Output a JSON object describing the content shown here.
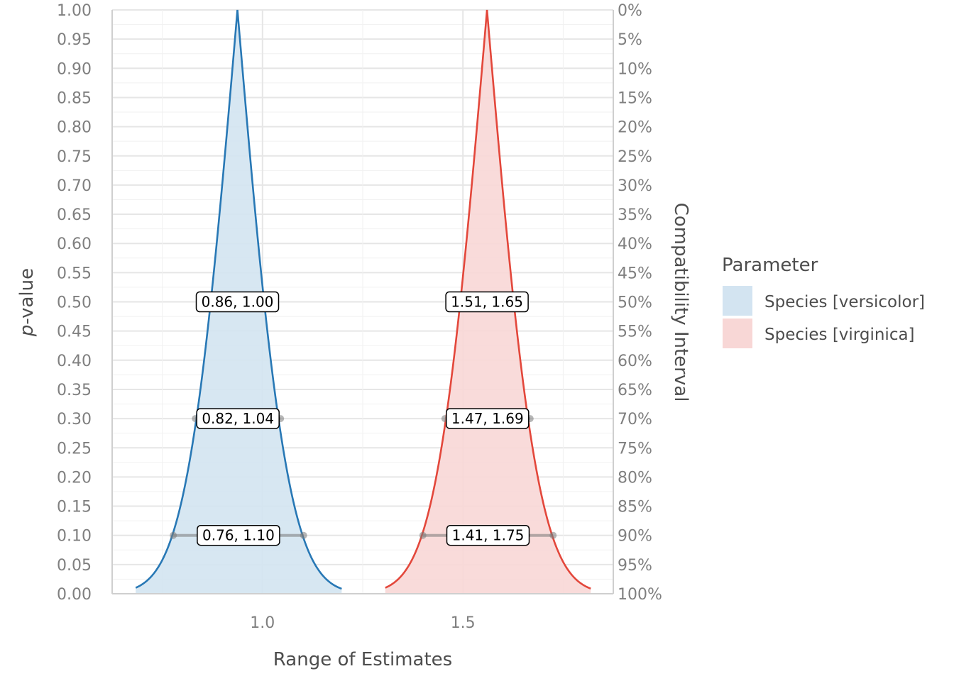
{
  "chart_data": {
    "type": "area",
    "title": "",
    "xlabel": "Range of Estimates",
    "ylabel_prefix": "p",
    "ylabel_suffix": "-value",
    "y2label": "Compatibility Interval",
    "xlim": [
      0.0,
      1.0
    ],
    "ylim": [
      0,
      1
    ],
    "x_ticks": [
      {
        "value": 0.3,
        "label": "1.0"
      },
      {
        "value": 0.7,
        "label": "1.5"
      }
    ],
    "y_ticks": [
      {
        "value": 1.0,
        "label": "1.00",
        "label2": "0%"
      },
      {
        "value": 0.95,
        "label": "0.95",
        "label2": "5%"
      },
      {
        "value": 0.9,
        "label": "0.90",
        "label2": "10%"
      },
      {
        "value": 0.85,
        "label": "0.85",
        "label2": "15%"
      },
      {
        "value": 0.8,
        "label": "0.80",
        "label2": "20%"
      },
      {
        "value": 0.75,
        "label": "0.75",
        "label2": "25%"
      },
      {
        "value": 0.7,
        "label": "0.70",
        "label2": "30%"
      },
      {
        "value": 0.65,
        "label": "0.65",
        "label2": "35%"
      },
      {
        "value": 0.6,
        "label": "0.60",
        "label2": "40%"
      },
      {
        "value": 0.55,
        "label": "0.55",
        "label2": "45%"
      },
      {
        "value": 0.5,
        "label": "0.50",
        "label2": "50%"
      },
      {
        "value": 0.45,
        "label": "0.45",
        "label2": "55%"
      },
      {
        "value": 0.4,
        "label": "0.40",
        "label2": "60%"
      },
      {
        "value": 0.35,
        "label": "0.35",
        "label2": "65%"
      },
      {
        "value": 0.3,
        "label": "0.30",
        "label2": "70%"
      },
      {
        "value": 0.25,
        "label": "0.25",
        "label2": "75%"
      },
      {
        "value": 0.2,
        "label": "0.20",
        "label2": "80%"
      },
      {
        "value": 0.15,
        "label": "0.15",
        "label2": "85%"
      },
      {
        "value": 0.1,
        "label": "0.10",
        "label2": "90%"
      },
      {
        "value": 0.05,
        "label": "0.05",
        "label2": "95%"
      },
      {
        "value": 0.0,
        "label": "0.00",
        "label2": "100%"
      }
    ],
    "legend": {
      "title": "Parameter",
      "position": "right"
    },
    "series": [
      {
        "name": "Species [versicolor]",
        "line_color": "#2878b5",
        "fill_color": "#d3e4f1",
        "x_min": 0.047,
        "x_peak": 0.25,
        "x_max": 0.458,
        "intervals": [
          {
            "p": 0.5,
            "x_lo": 0.193,
            "x_hi": 0.307,
            "label": "0.86, 1.00"
          },
          {
            "p": 0.3,
            "x_lo": 0.166,
            "x_hi": 0.336,
            "label": "0.82, 1.04"
          },
          {
            "p": 0.1,
            "x_lo": 0.122,
            "x_hi": 0.382,
            "label": "0.76, 1.10"
          }
        ]
      },
      {
        "name": "Species [virginica]",
        "line_color": "#e3473b",
        "fill_color": "#f8d7d6",
        "x_min": 0.545,
        "x_peak": 0.748,
        "x_max": 0.955,
        "intervals": [
          {
            "p": 0.5,
            "x_lo": 0.691,
            "x_hi": 0.805,
            "label": "1.51, 1.65"
          },
          {
            "p": 0.3,
            "x_lo": 0.664,
            "x_hi": 0.834,
            "label": "1.47, 1.69"
          },
          {
            "p": 0.1,
            "x_lo": 0.62,
            "x_hi": 0.88,
            "label": "1.41, 1.75"
          }
        ]
      }
    ]
  }
}
